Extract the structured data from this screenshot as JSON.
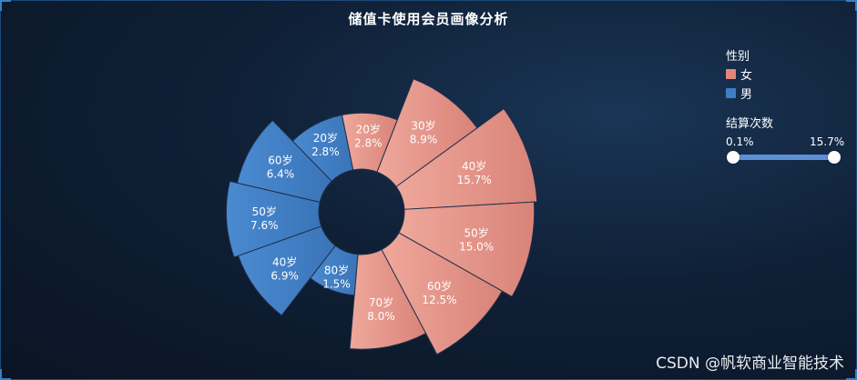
{
  "chart_data": {
    "type": "nightingale-rose",
    "title": "储值卡使用会员画像分析",
    "legend": {
      "title": "性别",
      "placement": "top-right",
      "items": [
        {
          "name": "女",
          "color": "#e4857a"
        },
        {
          "name": "男",
          "color": "#3f7ec5"
        }
      ]
    },
    "visual_map": {
      "title": "结算次数",
      "min_label": "0.1%",
      "max_label": "15.7%",
      "min": 0.1,
      "max": 15.7
    },
    "series": [
      {
        "name": "女",
        "color": "#e4857a",
        "data": [
          {
            "label": "20岁",
            "pct_label": "2.8%",
            "value": 2.8
          },
          {
            "label": "30岁",
            "pct_label": "8.9%",
            "value": 8.9
          },
          {
            "label": "40岁",
            "pct_label": "15.7%",
            "value": 15.7
          },
          {
            "label": "50岁",
            "pct_label": "15.0%",
            "value": 15.0
          },
          {
            "label": "60岁",
            "pct_label": "12.5%",
            "value": 12.5
          },
          {
            "label": "70岁",
            "pct_label": "8.0%",
            "value": 8.0
          }
        ]
      },
      {
        "name": "男",
        "color": "#3f7ec5",
        "data": [
          {
            "label": "80岁",
            "pct_label": "1.5%",
            "value": 1.5
          },
          {
            "label": "40岁",
            "pct_label": "6.9%",
            "value": 6.9
          },
          {
            "label": "50岁",
            "pct_label": "7.6%",
            "value": 7.6
          },
          {
            "label": "60岁",
            "pct_label": "6.4%",
            "value": 6.4
          },
          {
            "label": "20岁",
            "pct_label": "2.8%",
            "value": 2.8
          }
        ]
      }
    ]
  },
  "watermark": "CSDN @帆软商业智能技术"
}
